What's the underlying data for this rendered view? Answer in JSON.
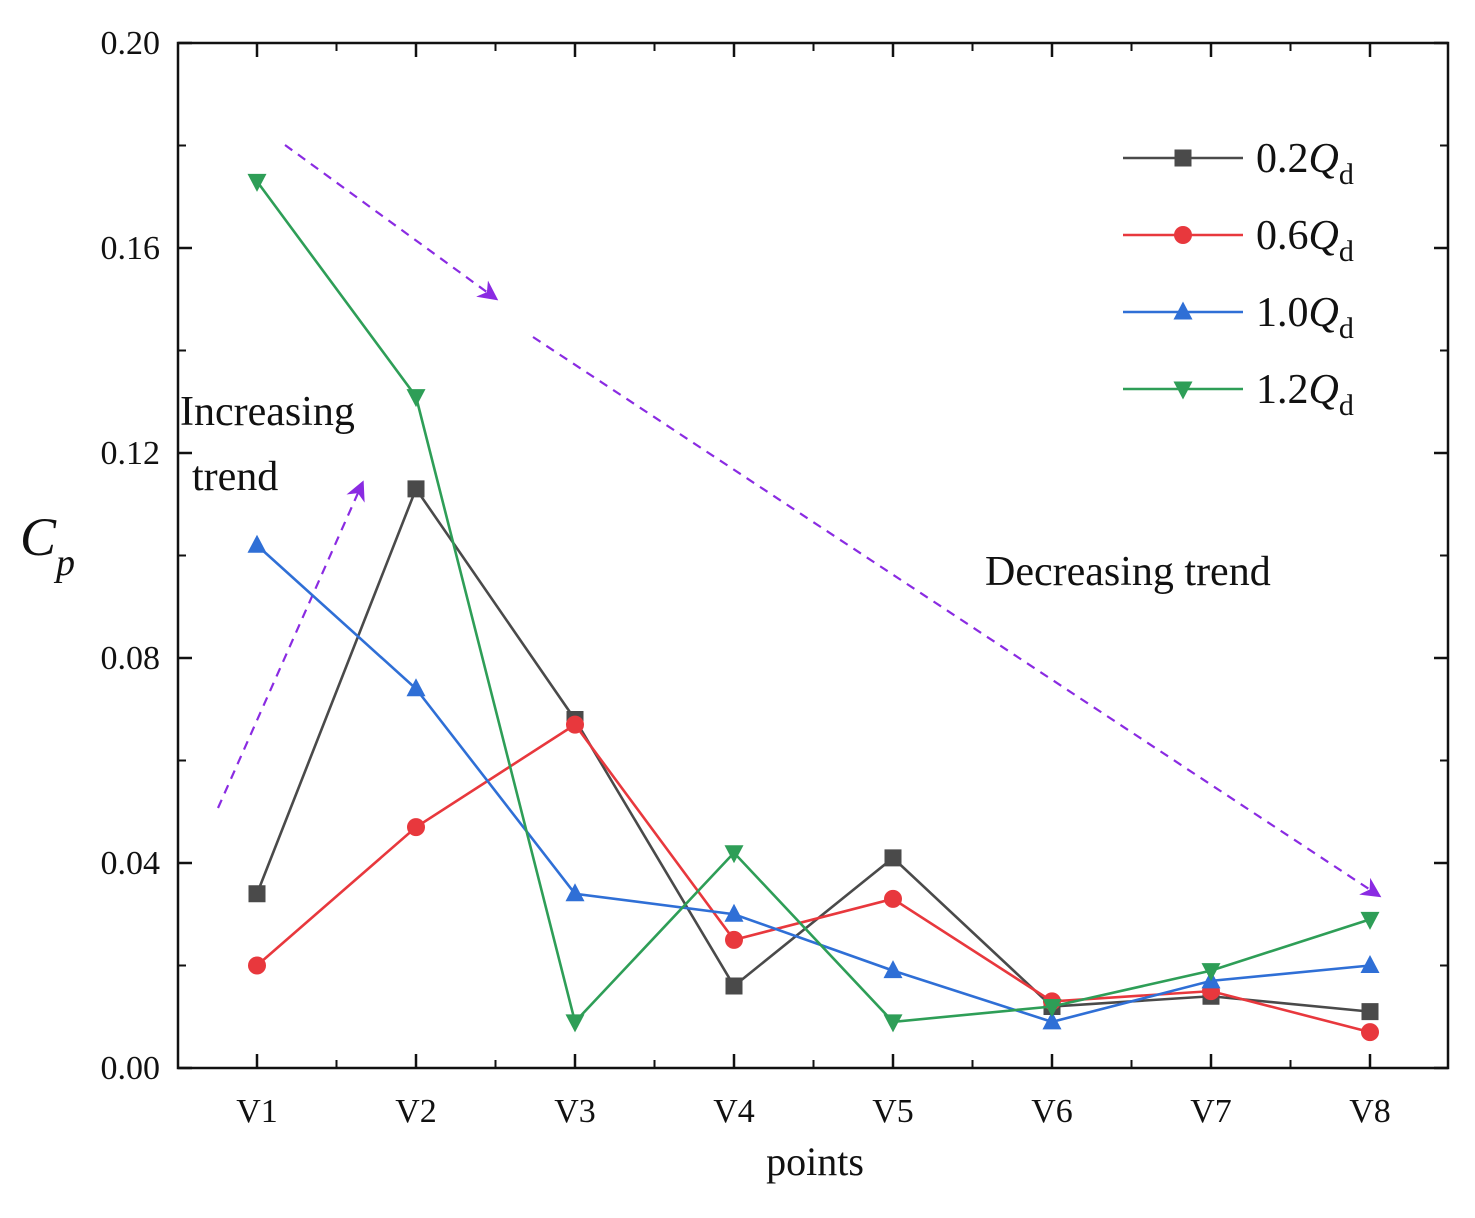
{
  "chart_data": {
    "type": "line",
    "title": "",
    "xlabel": "points",
    "ylabel": {
      "main": "C",
      "sub": "p"
    },
    "categories": [
      "V1",
      "V2",
      "V3",
      "V4",
      "V5",
      "V6",
      "V7",
      "V8"
    ],
    "ylim": [
      0,
      0.2
    ],
    "yticks": [
      "0.00",
      "0.04",
      "0.08",
      "0.12",
      "0.16",
      "0.20"
    ],
    "ytick_values": [
      0,
      0.04,
      0.08,
      0.12,
      0.16,
      0.2
    ],
    "grid": false,
    "legend_position": "top-right",
    "series": [
      {
        "name": "0.2Q",
        "name_main": "0.2",
        "name_italic": "Q",
        "name_sub": "d",
        "color": "#4a4a4a",
        "marker": "square",
        "values": [
          0.034,
          0.113,
          0.068,
          0.016,
          0.041,
          0.012,
          0.014,
          0.011
        ]
      },
      {
        "name": "0.6Q",
        "name_main": "0.6",
        "name_italic": "Q",
        "name_sub": "d",
        "color": "#e8383d",
        "marker": "circle",
        "values": [
          0.02,
          0.047,
          0.067,
          0.025,
          0.033,
          0.013,
          0.015,
          0.007
        ]
      },
      {
        "name": "1.0Q",
        "name_main": "1.0",
        "name_italic": "Q",
        "name_sub": "d",
        "color": "#2f6fd6",
        "marker": "triangle-up",
        "values": [
          0.102,
          0.074,
          0.034,
          0.03,
          0.019,
          0.009,
          0.017,
          0.02
        ]
      },
      {
        "name": "1.2Q",
        "name_main": "1.2",
        "name_italic": "Q",
        "name_sub": "d",
        "color": "#2e9e57",
        "marker": "triangle-down",
        "values": [
          0.173,
          0.131,
          0.009,
          0.042,
          0.009,
          0.012,
          0.019,
          0.029
        ]
      }
    ],
    "annotations": {
      "increasing": {
        "line1": "Increasing",
        "line2": "trend"
      },
      "decreasing": "Decreasing trend"
    },
    "arrow_color": "#8a2be2"
  }
}
